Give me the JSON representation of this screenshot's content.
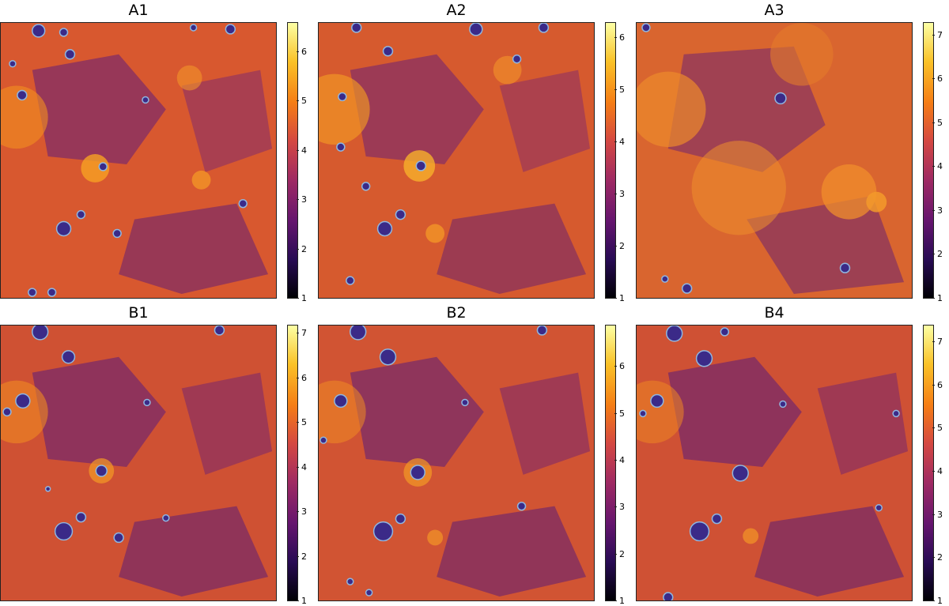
{
  "figure": {
    "colormap": [
      "#000004",
      "#280b54",
      "#65156e",
      "#9f2a63",
      "#d44842",
      "#f57d15",
      "#fac228",
      "#fcffa4"
    ],
    "contour_color": "#8fb6e0",
    "panels": [
      {
        "title": "A1",
        "vmin": 1,
        "vmax": 6.6,
        "ticks": [
          "1",
          "2",
          "3",
          "4",
          "5",
          "6"
        ]
      },
      {
        "title": "A2",
        "vmin": 1,
        "vmax": 6.3,
        "ticks": [
          "1",
          "2",
          "3",
          "4",
          "5",
          "6"
        ]
      },
      {
        "title": "A3",
        "vmin": 1,
        "vmax": 7.3,
        "ticks": [
          "1",
          "2",
          "3",
          "4",
          "5",
          "6",
          "7"
        ]
      },
      {
        "title": "B1",
        "vmin": 1,
        "vmax": 7.2,
        "ticks": [
          "1",
          "2",
          "3",
          "4",
          "5",
          "6",
          "7"
        ]
      },
      {
        "title": "B2",
        "vmin": 1,
        "vmax": 6.9,
        "ticks": [
          "1",
          "2",
          "3",
          "4",
          "5",
          "6"
        ]
      },
      {
        "title": "B4",
        "vmin": 1,
        "vmax": 7.4,
        "ticks": [
          "1",
          "2",
          "3",
          "4",
          "5",
          "6",
          "7"
        ]
      }
    ]
  }
}
